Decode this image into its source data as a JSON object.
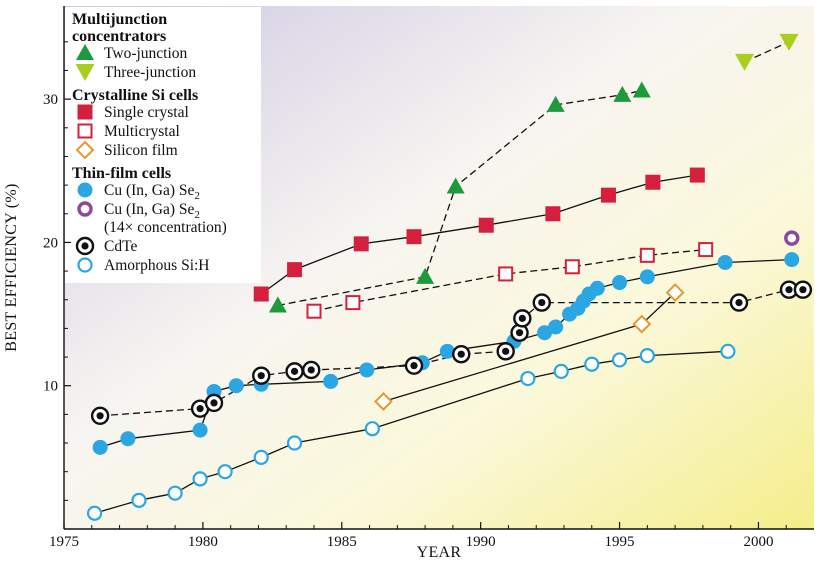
{
  "chart_data": {
    "type": "scatter",
    "title": "",
    "xlabel": "YEAR",
    "ylabel": "BEST EFFICIENCY (%)",
    "xlim": [
      1975,
      2002
    ],
    "ylim": [
      0,
      36.5
    ],
    "x_ticks": [
      1975,
      1980,
      1985,
      1990,
      1995,
      2000
    ],
    "y_ticks": [
      10,
      20,
      30
    ],
    "grid": false,
    "legend_position": "top-left",
    "legend_groups": [
      {
        "heading": [
          "Multijunction",
          "concentrators"
        ],
        "series": [
          "two",
          "three"
        ]
      },
      {
        "heading": [
          "Crystalline Si cells"
        ],
        "series": [
          "single",
          "multi",
          "film"
        ]
      },
      {
        "heading": [
          "Thin-film cells"
        ],
        "series": [
          "cigs",
          "cigs_conc",
          "cdte",
          "asi"
        ]
      }
    ],
    "series": [
      {
        "id": "two",
        "name": "Two-junction",
        "marker": "triangle-up",
        "color": "#1e9a3c",
        "line": "dashed",
        "x": [
          1982.7,
          1988.0,
          1989.1,
          1992.7,
          1995.1,
          1995.8
        ],
        "y": [
          15.6,
          17.6,
          23.9,
          29.6,
          30.3,
          30.6
        ]
      },
      {
        "id": "three",
        "name": "Three-junction",
        "marker": "triangle-down",
        "color": "#a8cf1e",
        "line": "dashed",
        "x": [
          1999.5,
          2001.1
        ],
        "y": [
          32.6,
          34.0
        ]
      },
      {
        "id": "single",
        "name": "Single crystal",
        "marker": "square",
        "color": "#d4203c",
        "line": "solid",
        "x": [
          1982.1,
          1983.3,
          1985.7,
          1987.6,
          1990.2,
          1992.6,
          1994.6,
          1996.2,
          1997.8
        ],
        "y": [
          16.4,
          18.1,
          19.9,
          20.4,
          21.2,
          22.0,
          23.3,
          24.2,
          24.7
        ]
      },
      {
        "id": "multi",
        "name": "Multicrystal",
        "marker": "square-open",
        "color": "#d4203c",
        "line": "dashed",
        "x": [
          1984.0,
          1985.4,
          1990.9,
          1993.3,
          1996.0,
          1998.1
        ],
        "y": [
          15.2,
          15.8,
          17.8,
          18.3,
          19.1,
          19.5
        ]
      },
      {
        "id": "film",
        "name": "Silicon film",
        "marker": "diamond-open",
        "color": "#e8972c",
        "line": "solid",
        "x": [
          1986.5,
          1995.8,
          1997.0
        ],
        "y": [
          8.9,
          14.3,
          16.5
        ]
      },
      {
        "id": "cigs",
        "name": "Cu (In, Ga) Se",
        "name_sub": "2",
        "marker": "circle",
        "color": "#2aa6e3",
        "line": "solid",
        "x": [
          1976.3,
          1977.3,
          1979.9,
          1980.4,
          1981.2,
          1982.1,
          1984.6,
          1985.9,
          1987.9,
          1988.8,
          1991.2,
          1992.3,
          1992.7,
          1993.2,
          1993.5,
          1993.7,
          1993.9,
          1994.2,
          1995.0,
          1996.0,
          1998.8,
          2001.2
        ],
        "y": [
          5.7,
          6.3,
          6.9,
          9.6,
          10.0,
          10.1,
          10.3,
          11.1,
          11.6,
          12.4,
          13.1,
          13.7,
          14.1,
          15.0,
          15.4,
          15.9,
          16.4,
          16.8,
          17.2,
          17.6,
          18.6,
          18.8
        ]
      },
      {
        "id": "cigs_conc",
        "name": "Cu (In, Ga) Se",
        "name_sub": "2",
        "name_extra": "(14× concentration)",
        "marker": "circle-open-thick",
        "color": "#8a4a9c",
        "line": "none",
        "x": [
          2001.2
        ],
        "y": [
          20.3
        ]
      },
      {
        "id": "cdte",
        "name": "CdTe",
        "marker": "circle-dot",
        "color": "#111111",
        "line": "dashed",
        "x": [
          1976.3,
          1979.9,
          1980.4,
          1982.1,
          1983.3,
          1983.9,
          1987.6,
          1989.3,
          1990.9,
          1991.4,
          1991.5,
          1992.2,
          1999.3,
          2001.1,
          2001.6
        ],
        "y": [
          7.9,
          8.4,
          8.8,
          10.7,
          11.0,
          11.1,
          11.4,
          12.2,
          12.4,
          13.7,
          14.7,
          15.8,
          15.8,
          16.7,
          16.7
        ]
      },
      {
        "id": "asi",
        "name": "Amorphous Si:H",
        "marker": "circle-open",
        "color": "#2aa6e3",
        "line": "solid",
        "x": [
          1976.1,
          1977.7,
          1979.0,
          1979.9,
          1980.8,
          1982.1,
          1983.3,
          1986.1,
          1991.7,
          1992.9,
          1994.0,
          1995.0,
          1996.0,
          1998.9
        ],
        "y": [
          1.1,
          2.0,
          2.5,
          3.5,
          4.0,
          5.0,
          6.0,
          7.0,
          10.5,
          11.0,
          11.5,
          11.8,
          12.1,
          12.4
        ]
      }
    ]
  }
}
